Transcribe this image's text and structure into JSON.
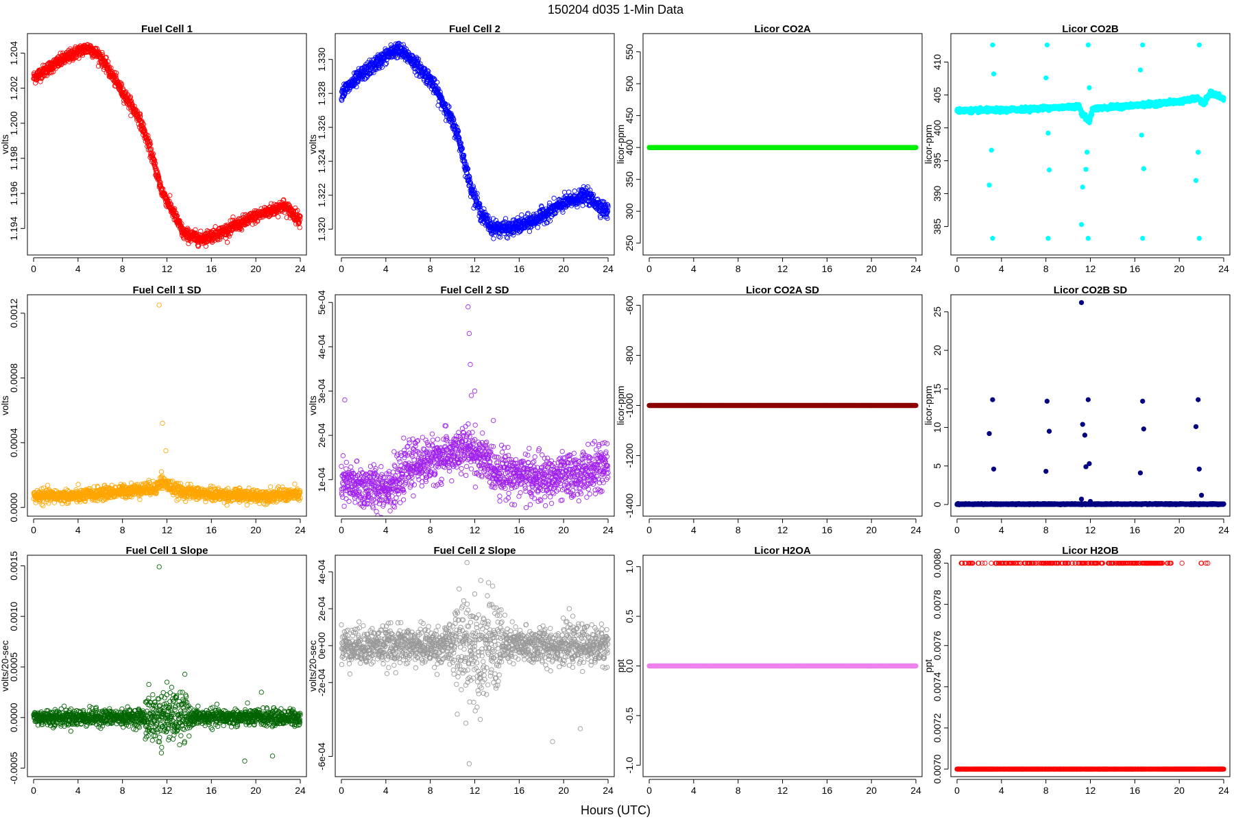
{
  "figure": {
    "title": "150204   d035   1-Min Data",
    "xlabel": "Hours (UTC)"
  },
  "chart_data": [
    {
      "type": "scatter",
      "title": "Fuel Cell 1",
      "ylabel": "volts",
      "color": "#ff0000",
      "xlim": [
        0,
        24
      ],
      "ylim": [
        1.1928,
        1.2048
      ],
      "xticks": [
        "0",
        "4",
        "8",
        "12",
        "16",
        "20",
        "24"
      ],
      "xtick_values": [
        0,
        4,
        8,
        12,
        16,
        20,
        24
      ],
      "yticks": [
        "1.194",
        "1.196",
        "1.198",
        "1.200",
        "1.202",
        "1.204"
      ],
      "ytick_values": [
        1.194,
        1.196,
        1.198,
        1.2,
        1.202,
        1.204
      ],
      "knots": [
        [
          0,
          1.2026
        ],
        [
          2,
          1.2034
        ],
        [
          4,
          1.2041
        ],
        [
          5,
          1.2043
        ],
        [
          6,
          1.2038
        ],
        [
          8,
          1.2018
        ],
        [
          9.5,
          1.2003
        ],
        [
          10.5,
          1.1985
        ],
        [
          11.5,
          1.1962
        ],
        [
          12.5,
          1.195
        ],
        [
          13.5,
          1.1937
        ],
        [
          15,
          1.1934
        ],
        [
          17,
          1.1938
        ],
        [
          20,
          1.1947
        ],
        [
          22.5,
          1.1953
        ],
        [
          24,
          1.1945
        ]
      ],
      "noise": 0.00018
    },
    {
      "type": "scatter",
      "title": "Fuel Cell 2",
      "ylabel": "volts",
      "color": "#0000ff",
      "xlim": [
        0,
        24
      ],
      "ylim": [
        1.3188,
        1.3312
      ],
      "xticks": [
        "0",
        "4",
        "8",
        "12",
        "16",
        "20",
        "24"
      ],
      "xtick_values": [
        0,
        4,
        8,
        12,
        16,
        20,
        24
      ],
      "yticks": [
        "1.320",
        "1.322",
        "1.324",
        "1.326",
        "1.328",
        "1.330"
      ],
      "ytick_values": [
        1.32,
        1.322,
        1.324,
        1.326,
        1.328,
        1.33
      ],
      "knots": [
        [
          0,
          1.328
        ],
        [
          2,
          1.3292
        ],
        [
          4,
          1.3302
        ],
        [
          5,
          1.3306
        ],
        [
          6,
          1.3302
        ],
        [
          8,
          1.3288
        ],
        [
          9.5,
          1.327
        ],
        [
          10.5,
          1.3255
        ],
        [
          11.5,
          1.3228
        ],
        [
          12.5,
          1.321
        ],
        [
          13.5,
          1.3201
        ],
        [
          15,
          1.32
        ],
        [
          17,
          1.3204
        ],
        [
          20,
          1.3215
        ],
        [
          22,
          1.322
        ],
        [
          24,
          1.321
        ]
      ],
      "noise": 0.00022
    },
    {
      "type": "scatter",
      "title": "Licor CO2A",
      "ylabel": "licor-ppm",
      "color": "#00ee00",
      "xlim": [
        0,
        24
      ],
      "ylim": [
        240,
        570
      ],
      "xticks": [
        "0",
        "4",
        "8",
        "12",
        "16",
        "20",
        "24"
      ],
      "xtick_values": [
        0,
        4,
        8,
        12,
        16,
        20,
        24
      ],
      "yticks": [
        "250",
        "300",
        "350",
        "400",
        "450",
        "500",
        "550"
      ],
      "ytick_values": [
        250,
        300,
        350,
        400,
        450,
        500,
        550
      ],
      "knots": [
        [
          0,
          400
        ],
        [
          24,
          400
        ]
      ],
      "noise": 0,
      "filled": true
    },
    {
      "type": "scatter",
      "title": "Licor CO2B",
      "ylabel": "licor-ppm",
      "color": "#00ffff",
      "xlim": [
        0,
        24
      ],
      "ylim": [
        381.5,
        413.5
      ],
      "xticks": [
        "0",
        "4",
        "8",
        "12",
        "16",
        "20",
        "24"
      ],
      "xtick_values": [
        0,
        4,
        8,
        12,
        16,
        20,
        24
      ],
      "yticks": [
        "385",
        "390",
        "395",
        "400",
        "405",
        "410"
      ],
      "ytick_values": [
        385,
        390,
        395,
        400,
        405,
        410
      ],
      "knots": [
        [
          0,
          402.6
        ],
        [
          4,
          402.7
        ],
        [
          8,
          403.0
        ],
        [
          11,
          403.3
        ],
        [
          11.2,
          402.2
        ],
        [
          11.9,
          401.0
        ],
        [
          12.2,
          402.9
        ],
        [
          16,
          403.4
        ],
        [
          20,
          404.0
        ],
        [
          21.7,
          404.5
        ],
        [
          22.2,
          403.6
        ],
        [
          22.8,
          405.3
        ],
        [
          23.3,
          405.0
        ],
        [
          24,
          404.4
        ]
      ],
      "noise": 0.15,
      "filled": true,
      "extras": [
        [
          3.2,
          412.6
        ],
        [
          3.2,
          383.2
        ],
        [
          3.3,
          408.2
        ],
        [
          3.1,
          396.6
        ],
        [
          2.9,
          391.3
        ],
        [
          8.1,
          412.6
        ],
        [
          8.2,
          383.2
        ],
        [
          8.0,
          407.6
        ],
        [
          8.2,
          399.2
        ],
        [
          8.3,
          393.6
        ],
        [
          11.8,
          412.6
        ],
        [
          11.8,
          383.2
        ],
        [
          11.9,
          406.1
        ],
        [
          11.7,
          396.3
        ],
        [
          11.6,
          393.7
        ],
        [
          11.3,
          391.0
        ],
        [
          11.2,
          385.3
        ],
        [
          16.7,
          412.6
        ],
        [
          16.7,
          383.2
        ],
        [
          16.5,
          408.8
        ],
        [
          16.6,
          398.9
        ],
        [
          16.8,
          393.8
        ],
        [
          21.8,
          412.6
        ],
        [
          21.8,
          383.2
        ],
        [
          21.7,
          396.3
        ],
        [
          21.5,
          392.0
        ]
      ]
    },
    {
      "type": "scatter",
      "title": "Fuel Cell 1 SD",
      "ylabel": "volts",
      "color": "#ffa500",
      "xlim": [
        0,
        24
      ],
      "ylim": [
        -2e-05,
        0.00128
      ],
      "xticks": [
        "0",
        "4",
        "8",
        "12",
        "16",
        "20",
        "24"
      ],
      "xtick_values": [
        0,
        4,
        8,
        12,
        16,
        20,
        24
      ],
      "yticks": [
        "0.0000",
        "0.0004",
        "0.0008",
        "0.0012"
      ],
      "ytick_values": [
        0,
        0.0004,
        0.0008,
        0.0012
      ],
      "knots": [
        [
          0,
          7e-05
        ],
        [
          4,
          7e-05
        ],
        [
          8,
          0.0001
        ],
        [
          11,
          0.00012
        ],
        [
          11.5,
          0.00016
        ],
        [
          13,
          0.0001
        ],
        [
          16,
          8e-05
        ],
        [
          20,
          7e-05
        ],
        [
          24,
          8e-05
        ]
      ],
      "noise": 2e-05,
      "extras": [
        [
          11.3,
          0.00125
        ],
        [
          11.6,
          0.00052
        ],
        [
          11.9,
          0.00035
        ],
        [
          11.5,
          0.00022
        ]
      ]
    },
    {
      "type": "scatter",
      "title": "Fuel Cell 2 SD",
      "ylabel": "volts",
      "color": "#a020f0",
      "xlim": [
        0,
        24
      ],
      "ylim": [
        3e-05,
        0.000505
      ],
      "xticks": [
        "0",
        "4",
        "8",
        "12",
        "16",
        "20",
        "24"
      ],
      "xtick_values": [
        0,
        4,
        8,
        12,
        16,
        20,
        24
      ],
      "yticks": [
        "1e-04",
        "2e-04",
        "3e-04",
        "4e-04",
        "5e-04"
      ],
      "ytick_values": [
        0.0001,
        0.0002,
        0.0003,
        0.0004,
        0.0005
      ],
      "knots": [
        [
          0,
          9e-05
        ],
        [
          3,
          8e-05
        ],
        [
          5,
          9e-05
        ],
        [
          6,
          0.00013
        ],
        [
          9,
          0.00015
        ],
        [
          11.5,
          0.00017
        ],
        [
          14,
          0.00012
        ],
        [
          18,
          0.0001
        ],
        [
          21,
          0.00011
        ],
        [
          24,
          0.00013
        ]
      ],
      "noise": 2.5e-05,
      "extras": [
        [
          11.4,
          0.00049
        ],
        [
          11.5,
          0.00043
        ],
        [
          11.6,
          0.00036
        ],
        [
          11.7,
          0.00029
        ],
        [
          12,
          0.0003
        ],
        [
          0.3,
          0.00028
        ]
      ]
    },
    {
      "type": "scatter",
      "title": "Licor CO2A SD",
      "ylabel": "licor-ppm",
      "color": "#8b0000",
      "xlim": [
        0,
        24
      ],
      "ylim": [
        -1420,
        -580
      ],
      "xticks": [
        "0",
        "4",
        "8",
        "12",
        "16",
        "20",
        "24"
      ],
      "xtick_values": [
        0,
        4,
        8,
        12,
        16,
        20,
        24
      ],
      "yticks": [
        "-1400",
        "-1200",
        "-1000",
        "-800",
        "-600"
      ],
      "ytick_values": [
        -1400,
        -1200,
        -1000,
        -800,
        -600
      ],
      "knots": [
        [
          0,
          -1000
        ],
        [
          24,
          -1000
        ]
      ],
      "noise": 0,
      "filled": true
    },
    {
      "type": "scatter",
      "title": "Licor CO2B SD",
      "ylabel": "licor-ppm",
      "color": "#000080",
      "xlim": [
        0,
        24
      ],
      "ylim": [
        -0.8,
        26.5
      ],
      "xticks": [
        "0",
        "4",
        "8",
        "12",
        "16",
        "20",
        "24"
      ],
      "xtick_values": [
        0,
        4,
        8,
        12,
        16,
        20,
        24
      ],
      "yticks": [
        "0",
        "5",
        "10",
        "15",
        "20",
        "25"
      ],
      "ytick_values": [
        0,
        5,
        10,
        15,
        20,
        25
      ],
      "knots": [
        [
          0,
          0.05
        ],
        [
          24,
          0.05
        ]
      ],
      "noise": 0.03,
      "filled": true,
      "extras": [
        [
          11.2,
          26.2
        ],
        [
          3.2,
          13.6
        ],
        [
          8.1,
          13.4
        ],
        [
          11.8,
          13.6
        ],
        [
          16.7,
          13.4
        ],
        [
          21.7,
          13.6
        ],
        [
          2.9,
          9.2
        ],
        [
          8.3,
          9.5
        ],
        [
          11.5,
          9.0
        ],
        [
          16.8,
          9.8
        ],
        [
          21.5,
          10.1
        ],
        [
          11.3,
          10.4
        ],
        [
          3.3,
          4.6
        ],
        [
          8.0,
          4.3
        ],
        [
          11.6,
          4.9
        ],
        [
          11.9,
          5.3
        ],
        [
          16.5,
          4.1
        ],
        [
          21.8,
          4.6
        ],
        [
          22.0,
          1.2
        ],
        [
          11.2,
          0.7
        ],
        [
          12.0,
          0.4
        ]
      ]
    },
    {
      "type": "scatter",
      "title": "Fuel Cell 1 Slope",
      "ylabel": "volts/20-sec",
      "color": "#006400",
      "xlim": [
        0,
        24
      ],
      "ylim": [
        -0.00053,
        0.00155
      ],
      "xticks": [
        "0",
        "4",
        "8",
        "12",
        "16",
        "20",
        "24"
      ],
      "xtick_values": [
        0,
        4,
        8,
        12,
        16,
        20,
        24
      ],
      "yticks": [
        "-0.0005",
        "0.0000",
        "0.0005",
        "0.0010",
        "0.0015"
      ],
      "ytick_values": [
        -0.0005,
        0,
        0.0005,
        0.001,
        0.0015
      ],
      "knots": [
        [
          0,
          0
        ],
        [
          24,
          0
        ]
      ],
      "noise": 4e-05,
      "burst": [
        10,
        14,
        0.00012
      ],
      "extras": [
        [
          11.3,
          0.00149
        ],
        [
          12,
          0.00035
        ],
        [
          11.5,
          -0.00035
        ],
        [
          19,
          -0.00043
        ],
        [
          21.5,
          -0.00038
        ],
        [
          20.5,
          0.00025
        ]
      ]
    },
    {
      "type": "scatter",
      "title": "Fuel Cell 2 Slope",
      "ylabel": "volts/20-sec",
      "color": "#999999",
      "xlim": [
        0,
        24
      ],
      "ylim": [
        -0.00068,
        0.00046
      ],
      "xticks": [
        "0",
        "4",
        "8",
        "12",
        "16",
        "20",
        "24"
      ],
      "xtick_values": [
        0,
        4,
        8,
        12,
        16,
        20,
        24
      ],
      "yticks": [
        "-6e-04",
        "-2e-04",
        "0e+00",
        "2e-04",
        "4e-04"
      ],
      "ytick_values": [
        -0.0006,
        -0.0002,
        0,
        0.0002,
        0.0004
      ],
      "knots": [
        [
          0,
          0
        ],
        [
          24,
          0
        ]
      ],
      "noise": 5e-05,
      "burst": [
        10,
        14.5,
        0.00013
      ],
      "extras": [
        [
          11.3,
          0.00045
        ],
        [
          11.5,
          -0.00064
        ],
        [
          11.2,
          -0.00042
        ],
        [
          12.5,
          -0.0004
        ],
        [
          19,
          -0.00052
        ],
        [
          21.5,
          -0.00045
        ],
        [
          20.5,
          0.0002
        ],
        [
          12,
          0.00028
        ]
      ]
    },
    {
      "type": "scatter",
      "title": "Licor H2OA",
      "ylabel": "ppt",
      "color": "#ee82ee",
      "xlim": [
        0,
        24
      ],
      "ylim": [
        -1.06,
        1.06
      ],
      "xticks": [
        "0",
        "4",
        "8",
        "12",
        "16",
        "20",
        "24"
      ],
      "xtick_values": [
        0,
        4,
        8,
        12,
        16,
        20,
        24
      ],
      "yticks": [
        "-1.0",
        "-0.5",
        "0.0",
        "0.5",
        "1.0"
      ],
      "ytick_values": [
        -1,
        -0.5,
        0,
        0.5,
        1
      ],
      "knots": [
        [
          0,
          0
        ],
        [
          24,
          0
        ]
      ],
      "noise": 0,
      "filled": true
    },
    {
      "type": "scatter",
      "title": "Licor H2OB",
      "ylabel": "ppt",
      "color": "#ff0000",
      "xlim": [
        0,
        24
      ],
      "ylim": [
        0.00699,
        0.008012
      ],
      "xticks": [
        "0",
        "4",
        "8",
        "12",
        "16",
        "20",
        "24"
      ],
      "xtick_values": [
        0,
        4,
        8,
        12,
        16,
        20,
        24
      ],
      "yticks": [
        "0.0070",
        "0.0072",
        "0.0074",
        "0.0076",
        "0.0078",
        "0.0080"
      ],
      "ytick_values": [
        0.007,
        0.0072,
        0.0074,
        0.0076,
        0.0078,
        0.008
      ],
      "binary": true,
      "low": 0.007,
      "high": 0.008
    }
  ]
}
